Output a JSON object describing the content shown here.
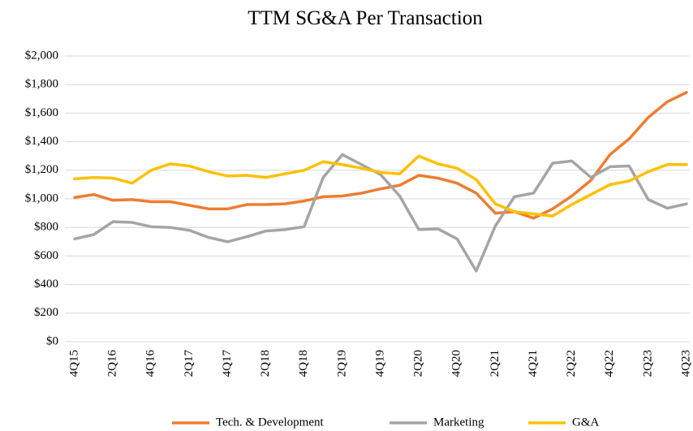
{
  "chart_data": {
    "type": "line",
    "title": "TTM SG&A Per Transaction",
    "categories": [
      "4Q15",
      null,
      "2Q16",
      null,
      "4Q16",
      null,
      "2Q17",
      null,
      "4Q17",
      null,
      "2Q18",
      null,
      "4Q18",
      null,
      "2Q19",
      null,
      "4Q19",
      null,
      "2Q20",
      null,
      "4Q20",
      null,
      "2Q21",
      null,
      "4Q21",
      null,
      "2Q22",
      null,
      "4Q22",
      null,
      "2Q23",
      null,
      "4Q23"
    ],
    "series": [
      {
        "name": "Tech. & Development",
        "color": "#ED7D31",
        "values": [
          1010,
          1030,
          990,
          995,
          980,
          980,
          955,
          930,
          930,
          960,
          960,
          965,
          985,
          1015,
          1020,
          1040,
          1070,
          1095,
          1165,
          1145,
          1110,
          1040,
          900,
          910,
          865,
          930,
          1020,
          1130,
          1310,
          1420,
          1570,
          1680,
          1745
        ]
      },
      {
        "name": "Marketing",
        "color": "#A5A5A5",
        "values": [
          720,
          750,
          840,
          835,
          805,
          800,
          780,
          730,
          700,
          735,
          775,
          785,
          805,
          1150,
          1310,
          1240,
          1170,
          1020,
          785,
          790,
          720,
          495,
          810,
          1015,
          1040,
          1250,
          1265,
          1150,
          1225,
          1230,
          995,
          935,
          965
        ]
      },
      {
        "name": "G&A",
        "color": "#FFC000",
        "values": [
          1140,
          1150,
          1145,
          1110,
          1200,
          1245,
          1230,
          1190,
          1160,
          1165,
          1150,
          1175,
          1200,
          1260,
          1240,
          1215,
          1185,
          1175,
          1300,
          1245,
          1215,
          1135,
          965,
          910,
          895,
          880,
          960,
          1030,
          1100,
          1125,
          1190,
          1240,
          1240
        ]
      }
    ],
    "ylim": [
      0,
      2000
    ],
    "yticks": [
      {
        "value": 0,
        "label": "$0"
      },
      {
        "value": 200,
        "label": "$200"
      },
      {
        "value": 400,
        "label": "$400"
      },
      {
        "value": 600,
        "label": "$600"
      },
      {
        "value": 800,
        "label": "$800"
      },
      {
        "value": 1000,
        "label": "$1,000"
      },
      {
        "value": 1200,
        "label": "$1,200"
      },
      {
        "value": 1400,
        "label": "$1,400"
      },
      {
        "value": 1600,
        "label": "$1,600"
      },
      {
        "value": 1800,
        "label": "$1,800"
      },
      {
        "value": 2000,
        "label": "$2,000"
      }
    ],
    "grid": true,
    "legend": "bottom"
  }
}
